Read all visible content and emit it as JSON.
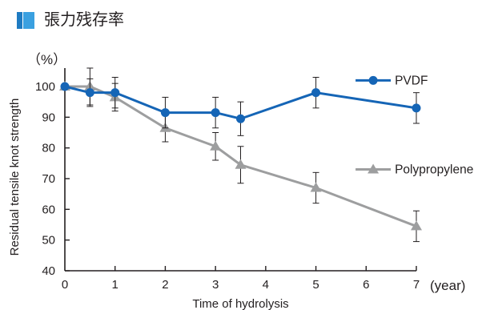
{
  "heading": "張力残存率",
  "colors": {
    "accent_dark": "#1e7bc2",
    "accent_light": "#3aa0e0"
  },
  "chart_data": {
    "type": "line",
    "title": "",
    "xlabel": "Time of hydrolysis",
    "xunit": "(year)",
    "ylabel": "Residual tensile knot strength",
    "yunit": "（%）",
    "xlim": [
      0,
      7
    ],
    "ylim": [
      40,
      100
    ],
    "xticks": [
      0,
      1,
      2,
      3,
      4,
      5,
      6,
      7
    ],
    "yticks": [
      40,
      50,
      60,
      70,
      80,
      90,
      100
    ],
    "grid": false,
    "legend": "inline-right",
    "series": [
      {
        "name": "PVDF",
        "color": "#1565b6",
        "marker": "circle",
        "x": [
          0,
          0.5,
          1,
          2,
          3,
          3.5,
          5,
          7
        ],
        "y": [
          100,
          98,
          98,
          91.5,
          91.5,
          89.5,
          98,
          93
        ],
        "err": [
          0,
          4.5,
          5,
          5,
          5,
          5.5,
          5,
          5
        ],
        "label": {
          "x": 6.3,
          "y": 102
        }
      },
      {
        "name": "Polypropylene",
        "color": "#9d9e9f",
        "marker": "triangle",
        "x": [
          0,
          0.5,
          1,
          2,
          3,
          3.5,
          5,
          7
        ],
        "y": [
          100,
          100,
          96.5,
          86.5,
          80.5,
          74.5,
          67,
          54.5
        ],
        "err": [
          0,
          6,
          4.5,
          4.5,
          4.5,
          6,
          5,
          5
        ],
        "label": {
          "x": 6.3,
          "y": 73
        }
      }
    ]
  }
}
